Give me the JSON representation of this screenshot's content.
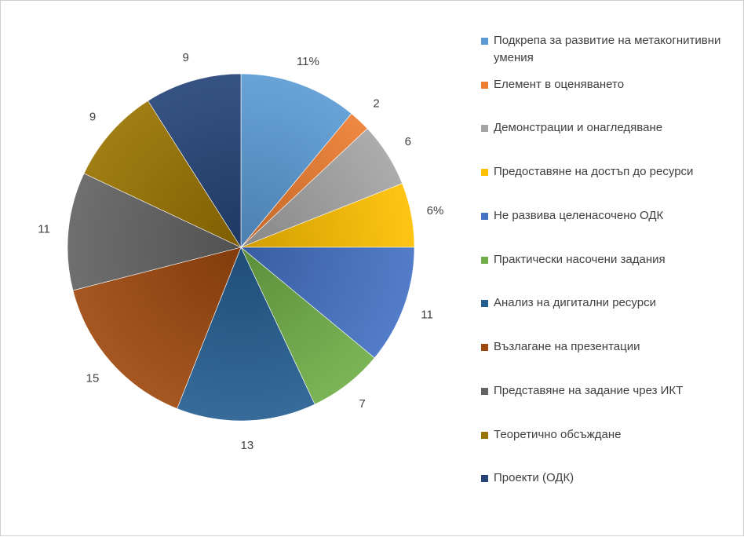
{
  "chart_data": {
    "type": "pie",
    "categories": [
      "Подкрепа за развитие на метакогнитивни умения",
      "Елемент в оценяването",
      "Демонстрации и онагледяване",
      "Предоставяне на достъп до ресурси",
      "Не развива целенасочено ОДК",
      "Практически насочени задания",
      "Анализ на дигитални ресурси",
      "Възлагане на презентации",
      "Представяне на задание чрез ИКТ",
      "Теоретично обсъждане",
      "Проекти (ОДК)"
    ],
    "values": [
      11,
      2,
      6,
      6,
      11,
      7,
      13,
      15,
      11,
      9,
      9
    ],
    "data_labels": [
      "11%",
      "2",
      "6",
      "6%",
      "11",
      "7",
      "13",
      "15",
      "11",
      "9",
      "9"
    ],
    "colors": [
      "#5b9bd5",
      "#ed7d31",
      "#a5a5a5",
      "#ffc000",
      "#4472c4",
      "#70ad47",
      "#255e91",
      "#9e480e",
      "#636363",
      "#997300",
      "#264478"
    ],
    "legend_position": "right",
    "title": ""
  }
}
